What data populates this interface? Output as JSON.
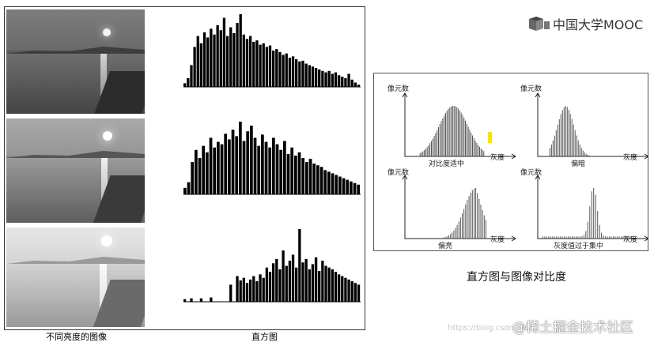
{
  "logo": {
    "icon": "mooc-logo-icon",
    "text": "中国大学MOOC"
  },
  "left_figure": {
    "images_caption": "不同亮度的图像",
    "histogram_caption": "直方图",
    "photos": [
      {
        "brightness": "dark"
      },
      {
        "brightness": "medium"
      },
      {
        "brightness": "bright"
      }
    ]
  },
  "right_figure": {
    "title": "直方图与图像对比度",
    "y_label": "像元数",
    "x_label": "灰度",
    "panels": [
      {
        "caption": "对比度适中"
      },
      {
        "caption": "偏暗"
      },
      {
        "caption": "偏亮"
      },
      {
        "caption": "灰度值过于集中"
      }
    ],
    "highlight_color": "#ffe100"
  },
  "watermark": {
    "text": "@稀土掘金技术社区",
    "url": "https://blog.csdn.net/..."
  },
  "chart_data": [
    {
      "type": "bar",
      "title": "",
      "note": "dark image histogram",
      "values": [
        5,
        12,
        30,
        55,
        70,
        60,
        75,
        68,
        80,
        72,
        85,
        78,
        95,
        70,
        82,
        74,
        88,
        100,
        72,
        66,
        70,
        62,
        64,
        58,
        60,
        55,
        57,
        50,
        52,
        48,
        44,
        46,
        40,
        42,
        38,
        35,
        36,
        32,
        30,
        28,
        26,
        24,
        22,
        20,
        22,
        18,
        20,
        16,
        14,
        12,
        18,
        10,
        6,
        3
      ]
    },
    {
      "type": "bar",
      "title": "",
      "note": "medium image histogram",
      "values": [
        8,
        15,
        40,
        55,
        45,
        60,
        52,
        70,
        58,
        65,
        62,
        75,
        68,
        80,
        72,
        90,
        66,
        78,
        85,
        70,
        60,
        74,
        65,
        58,
        70,
        62,
        55,
        66,
        50,
        58,
        48,
        52,
        45,
        40,
        44,
        38,
        36,
        34,
        30,
        28,
        26,
        24,
        22,
        20,
        18,
        16,
        14,
        12
      ]
    },
    {
      "type": "bar",
      "title": "",
      "note": "bright image histogram",
      "values": [
        3,
        0,
        4,
        0,
        0,
        4,
        0,
        0,
        5,
        0,
        0,
        0,
        0,
        0,
        20,
        0,
        30,
        25,
        28,
        22,
        26,
        30,
        24,
        32,
        28,
        40,
        35,
        45,
        50,
        38,
        60,
        42,
        48,
        55,
        40,
        85,
        46,
        50,
        38,
        44,
        52,
        36,
        48,
        42,
        40,
        38,
        35,
        32,
        30,
        28,
        26,
        24,
        22,
        20
      ]
    }
  ]
}
